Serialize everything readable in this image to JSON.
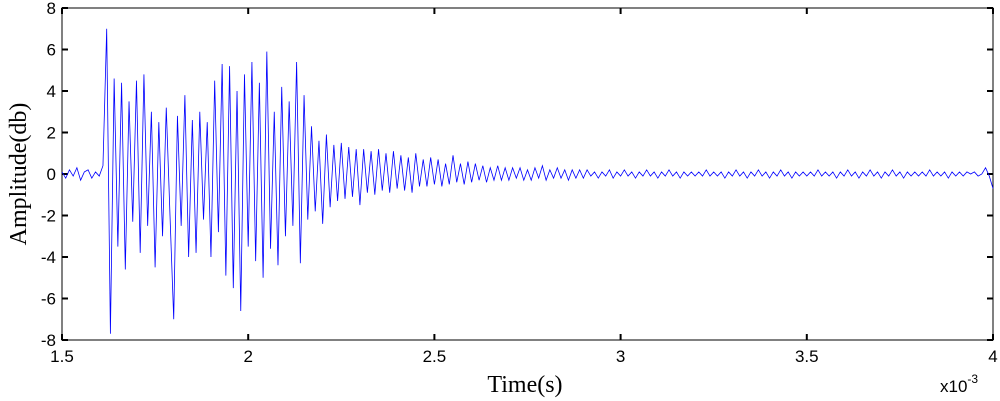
{
  "chart_data": {
    "type": "line",
    "x_label": "Time(s)",
    "y_label": "Amplitude(db)",
    "x_exponent_label": {
      "base": "x10",
      "exponent": "-3"
    },
    "color": "#0000ff",
    "xlim": [
      1.5,
      4
    ],
    "xticks": [
      1.5,
      2,
      2.5,
      3,
      3.5,
      4
    ],
    "ylim": [
      -8,
      8
    ],
    "yticks": [
      -8,
      -6,
      -4,
      -2,
      0,
      2,
      4,
      6,
      8
    ],
    "grid": false,
    "x": [
      1.5,
      1.51,
      1.52,
      1.53,
      1.54,
      1.55,
      1.56,
      1.57,
      1.58,
      1.59,
      1.6,
      1.61,
      1.62,
      1.63,
      1.64,
      1.65,
      1.66,
      1.67,
      1.68,
      1.69,
      1.7,
      1.71,
      1.72,
      1.73,
      1.74,
      1.75,
      1.76,
      1.77,
      1.78,
      1.79,
      1.8,
      1.81,
      1.82,
      1.83,
      1.84,
      1.85,
      1.86,
      1.87,
      1.88,
      1.89,
      1.9,
      1.91,
      1.92,
      1.93,
      1.94,
      1.95,
      1.96,
      1.97,
      1.98,
      1.99,
      2.0,
      2.01,
      2.02,
      2.03,
      2.04,
      2.05,
      2.06,
      2.07,
      2.08,
      2.09,
      2.1,
      2.11,
      2.12,
      2.13,
      2.14,
      2.15,
      2.16,
      2.17,
      2.18,
      2.19,
      2.2,
      2.21,
      2.22,
      2.23,
      2.24,
      2.25,
      2.26,
      2.27,
      2.28,
      2.29,
      2.3,
      2.31,
      2.32,
      2.33,
      2.34,
      2.35,
      2.36,
      2.37,
      2.38,
      2.39,
      2.4,
      2.41,
      2.42,
      2.43,
      2.44,
      2.45,
      2.46,
      2.47,
      2.48,
      2.49,
      2.5,
      2.51,
      2.52,
      2.53,
      2.54,
      2.55,
      2.56,
      2.57,
      2.58,
      2.59,
      2.6,
      2.61,
      2.62,
      2.63,
      2.64,
      2.65,
      2.66,
      2.67,
      2.68,
      2.69,
      2.7,
      2.71,
      2.72,
      2.73,
      2.74,
      2.75,
      2.76,
      2.77,
      2.78,
      2.79,
      2.8,
      2.81,
      2.82,
      2.83,
      2.84,
      2.85,
      2.86,
      2.87,
      2.88,
      2.89,
      2.9,
      2.91,
      2.92,
      2.93,
      2.94,
      2.95,
      2.96,
      2.97,
      2.98,
      2.99,
      3.0,
      3.01,
      3.02,
      3.03,
      3.04,
      3.05,
      3.06,
      3.07,
      3.08,
      3.09,
      3.1,
      3.11,
      3.12,
      3.13,
      3.14,
      3.15,
      3.16,
      3.17,
      3.18,
      3.19,
      3.2,
      3.21,
      3.22,
      3.23,
      3.24,
      3.25,
      3.26,
      3.27,
      3.28,
      3.29,
      3.3,
      3.31,
      3.32,
      3.33,
      3.34,
      3.35,
      3.36,
      3.37,
      3.38,
      3.39,
      3.4,
      3.41,
      3.42,
      3.43,
      3.44,
      3.45,
      3.46,
      3.47,
      3.48,
      3.49,
      3.5,
      3.51,
      3.52,
      3.53,
      3.54,
      3.55,
      3.56,
      3.57,
      3.58,
      3.59,
      3.6,
      3.61,
      3.62,
      3.63,
      3.64,
      3.65,
      3.66,
      3.67,
      3.68,
      3.69,
      3.7,
      3.71,
      3.72,
      3.73,
      3.74,
      3.75,
      3.76,
      3.77,
      3.78,
      3.79,
      3.8,
      3.81,
      3.82,
      3.83,
      3.84,
      3.85,
      3.86,
      3.87,
      3.88,
      3.89,
      3.9,
      3.91,
      3.92,
      3.93,
      3.94,
      3.95,
      3.96,
      3.97,
      3.98,
      3.99,
      4.0
    ],
    "values": [
      0.1,
      -0.2,
      0.2,
      -0.1,
      0.3,
      -0.3,
      0.1,
      0.2,
      -0.2,
      0.1,
      -0.1,
      0.4,
      7.0,
      -7.7,
      4.6,
      -3.5,
      4.4,
      -4.6,
      3.5,
      -2.3,
      4.5,
      -3.8,
      4.8,
      -2.5,
      3.0,
      -4.5,
      2.5,
      -3.0,
      3.2,
      -2.0,
      -7.0,
      2.8,
      -2.5,
      3.8,
      -4.0,
      2.6,
      -3.8,
      3.0,
      -2.2,
      2.5,
      -4.0,
      4.5,
      -2.8,
      5.3,
      -4.9,
      5.2,
      -5.5,
      4.0,
      -6.6,
      4.8,
      -3.5,
      5.4,
      -4.2,
      4.4,
      -5.0,
      5.9,
      -3.6,
      3.0,
      -4.4,
      4.2,
      -3.0,
      3.5,
      -2.5,
      5.4,
      -4.3,
      3.8,
      -2.2,
      2.3,
      -1.8,
      1.6,
      -2.4,
      1.9,
      -1.6,
      1.4,
      -1.3,
      1.5,
      -1.2,
      1.3,
      -1.1,
      1.2,
      -1.5,
      1.2,
      -0.9,
      1.1,
      -1.0,
      1.2,
      -0.8,
      1.0,
      -0.9,
      1.1,
      -0.7,
      0.9,
      -0.8,
      0.8,
      -0.9,
      1.0,
      -0.6,
      0.7,
      -0.6,
      0.8,
      -0.5,
      0.7,
      -0.6,
      0.5,
      -0.5,
      0.9,
      -0.4,
      0.5,
      -0.5,
      0.6,
      -0.4,
      0.5,
      -0.3,
      0.4,
      -0.4,
      0.3,
      -0.3,
      0.4,
      -0.3,
      0.3,
      -0.3,
      0.3,
      -0.2,
      0.3,
      -0.3,
      0.2,
      -0.3,
      0.3,
      -0.2,
      0.4,
      -0.3,
      0.2,
      -0.2,
      0.3,
      -0.2,
      0.2,
      -0.3,
      0.2,
      -0.2,
      0.2,
      -0.2,
      0.2,
      -0.1,
      0.1,
      -0.2,
      0.1,
      -0.1,
      0.2,
      -0.2,
      0.1,
      -0.1,
      0.2,
      -0.1,
      0.1,
      -0.2,
      0.1,
      -0.1,
      0.2,
      -0.1,
      0.1,
      -0.2,
      0.1,
      -0.1,
      0.2,
      -0.1,
      0.1,
      -0.2,
      0.1,
      -0.1,
      0.1,
      -0.1,
      0.1,
      -0.1,
      0.2,
      -0.1,
      0.1,
      -0.1,
      0.1,
      -0.2,
      0.1,
      -0.1,
      0.2,
      -0.1,
      0.1,
      -0.2,
      0.1,
      -0.1,
      0.2,
      -0.1,
      0.1,
      -0.2,
      0.1,
      -0.1,
      0.2,
      -0.1,
      0.1,
      -0.2,
      0.1,
      -0.1,
      0.1,
      -0.1,
      0.1,
      -0.1,
      0.2,
      -0.1,
      0.1,
      -0.1,
      0.1,
      -0.2,
      0.1,
      -0.1,
      0.2,
      -0.1,
      0.1,
      -0.2,
      0.1,
      -0.1,
      0.2,
      -0.1,
      0.1,
      -0.2,
      0.1,
      -0.1,
      0.2,
      -0.1,
      0.1,
      -0.2,
      0.1,
      -0.1,
      0.1,
      -0.1,
      0.1,
      -0.1,
      0.2,
      -0.1,
      0.1,
      -0.1,
      0.1,
      -0.2,
      0.1,
      -0.1,
      0.1,
      -0.1,
      0.1,
      0,
      0.1,
      -0.1,
      0,
      0.3,
      -0.1,
      -0.7
    ]
  }
}
